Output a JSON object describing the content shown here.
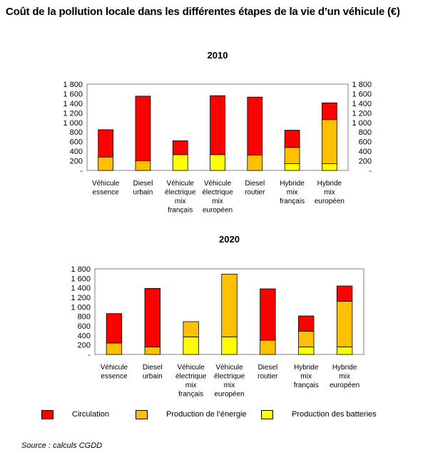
{
  "title": "Coût de la pollution locale dans les différentes étapes de la vie d’un véhicule (€)",
  "source": "Source : calculs CGDD",
  "colors": {
    "circulation": "#ff0000",
    "production_energie": "#ffc000",
    "production_batteries": "#ffff00"
  },
  "legend": [
    {
      "label": "Circulation",
      "key": "circulation"
    },
    {
      "label": "Production de l’énergie",
      "key": "production_energie"
    },
    {
      "label": "Production des batteries",
      "key": "production_batteries"
    }
  ],
  "chart_data": [
    {
      "type": "bar",
      "stacked": true,
      "title": "2010",
      "ylim": [
        0,
        1800
      ],
      "yticks": [
        {
          "value": 0,
          "label": "-"
        },
        {
          "value": 200,
          "label": "200"
        },
        {
          "value": 400,
          "label": "400"
        },
        {
          "value": 600,
          "label": "600"
        },
        {
          "value": 800,
          "label": "800"
        },
        {
          "value": 1000,
          "label": "1 000"
        },
        {
          "value": 1200,
          "label": "1 200"
        },
        {
          "value": 1400,
          "label": "1 400"
        },
        {
          "value": 1600,
          "label": "1 600"
        },
        {
          "value": 1800,
          "label": "1 800"
        }
      ],
      "categories": [
        [
          "Véhicule",
          "essence"
        ],
        [
          "Diesel",
          "urbain"
        ],
        [
          "Véhicule",
          "électrique",
          "mix",
          "français"
        ],
        [
          "Véhicule",
          "électrique",
          "mix",
          "européen"
        ],
        [
          "Diesel",
          "routier"
        ],
        [
          "Hybride",
          "mix",
          "français"
        ],
        [
          "Hybride",
          "mix",
          "européen"
        ]
      ],
      "series": [
        {
          "key": "production_batteries",
          "values": [
            0,
            0,
            330,
            330,
            0,
            140,
            140
          ]
        },
        {
          "key": "production_energie",
          "values": [
            280,
            200,
            0,
            0,
            320,
            340,
            920
          ]
        },
        {
          "key": "circulation",
          "values": [
            570,
            1350,
            290,
            1230,
            1210,
            360,
            350
          ]
        }
      ]
    },
    {
      "type": "bar",
      "stacked": true,
      "title": "2020",
      "ylim": [
        0,
        1800
      ],
      "yticks": [
        {
          "value": 0,
          "label": "-"
        },
        {
          "value": 200,
          "label": "200"
        },
        {
          "value": 400,
          "label": "400"
        },
        {
          "value": 600,
          "label": "600"
        },
        {
          "value": 800,
          "label": "800"
        },
        {
          "value": 1000,
          "label": "1 000"
        },
        {
          "value": 1200,
          "label": "1 200"
        },
        {
          "value": 1400,
          "label": "1 400"
        },
        {
          "value": 1600,
          "label": "1 600"
        },
        {
          "value": 1800,
          "label": "1 800"
        }
      ],
      "categories": [
        [
          "Véhicule",
          "essence"
        ],
        [
          "Diesel",
          "urbain"
        ],
        [
          "Véhicule",
          "électrique",
          "mix",
          "français"
        ],
        [
          "Véhicule",
          "électrique",
          "mix",
          "européen"
        ],
        [
          "Diesel",
          "routier"
        ],
        [
          "Hybride",
          "mix",
          "français"
        ],
        [
          "Hybride",
          "mix",
          "européen"
        ]
      ],
      "series": [
        {
          "key": "production_batteries",
          "values": [
            0,
            0,
            370,
            370,
            0,
            160,
            160
          ]
        },
        {
          "key": "production_energie",
          "values": [
            240,
            160,
            320,
            1320,
            300,
            330,
            960
          ]
        },
        {
          "key": "circulation",
          "values": [
            620,
            1230,
            0,
            0,
            1080,
            320,
            320
          ]
        }
      ]
    }
  ]
}
